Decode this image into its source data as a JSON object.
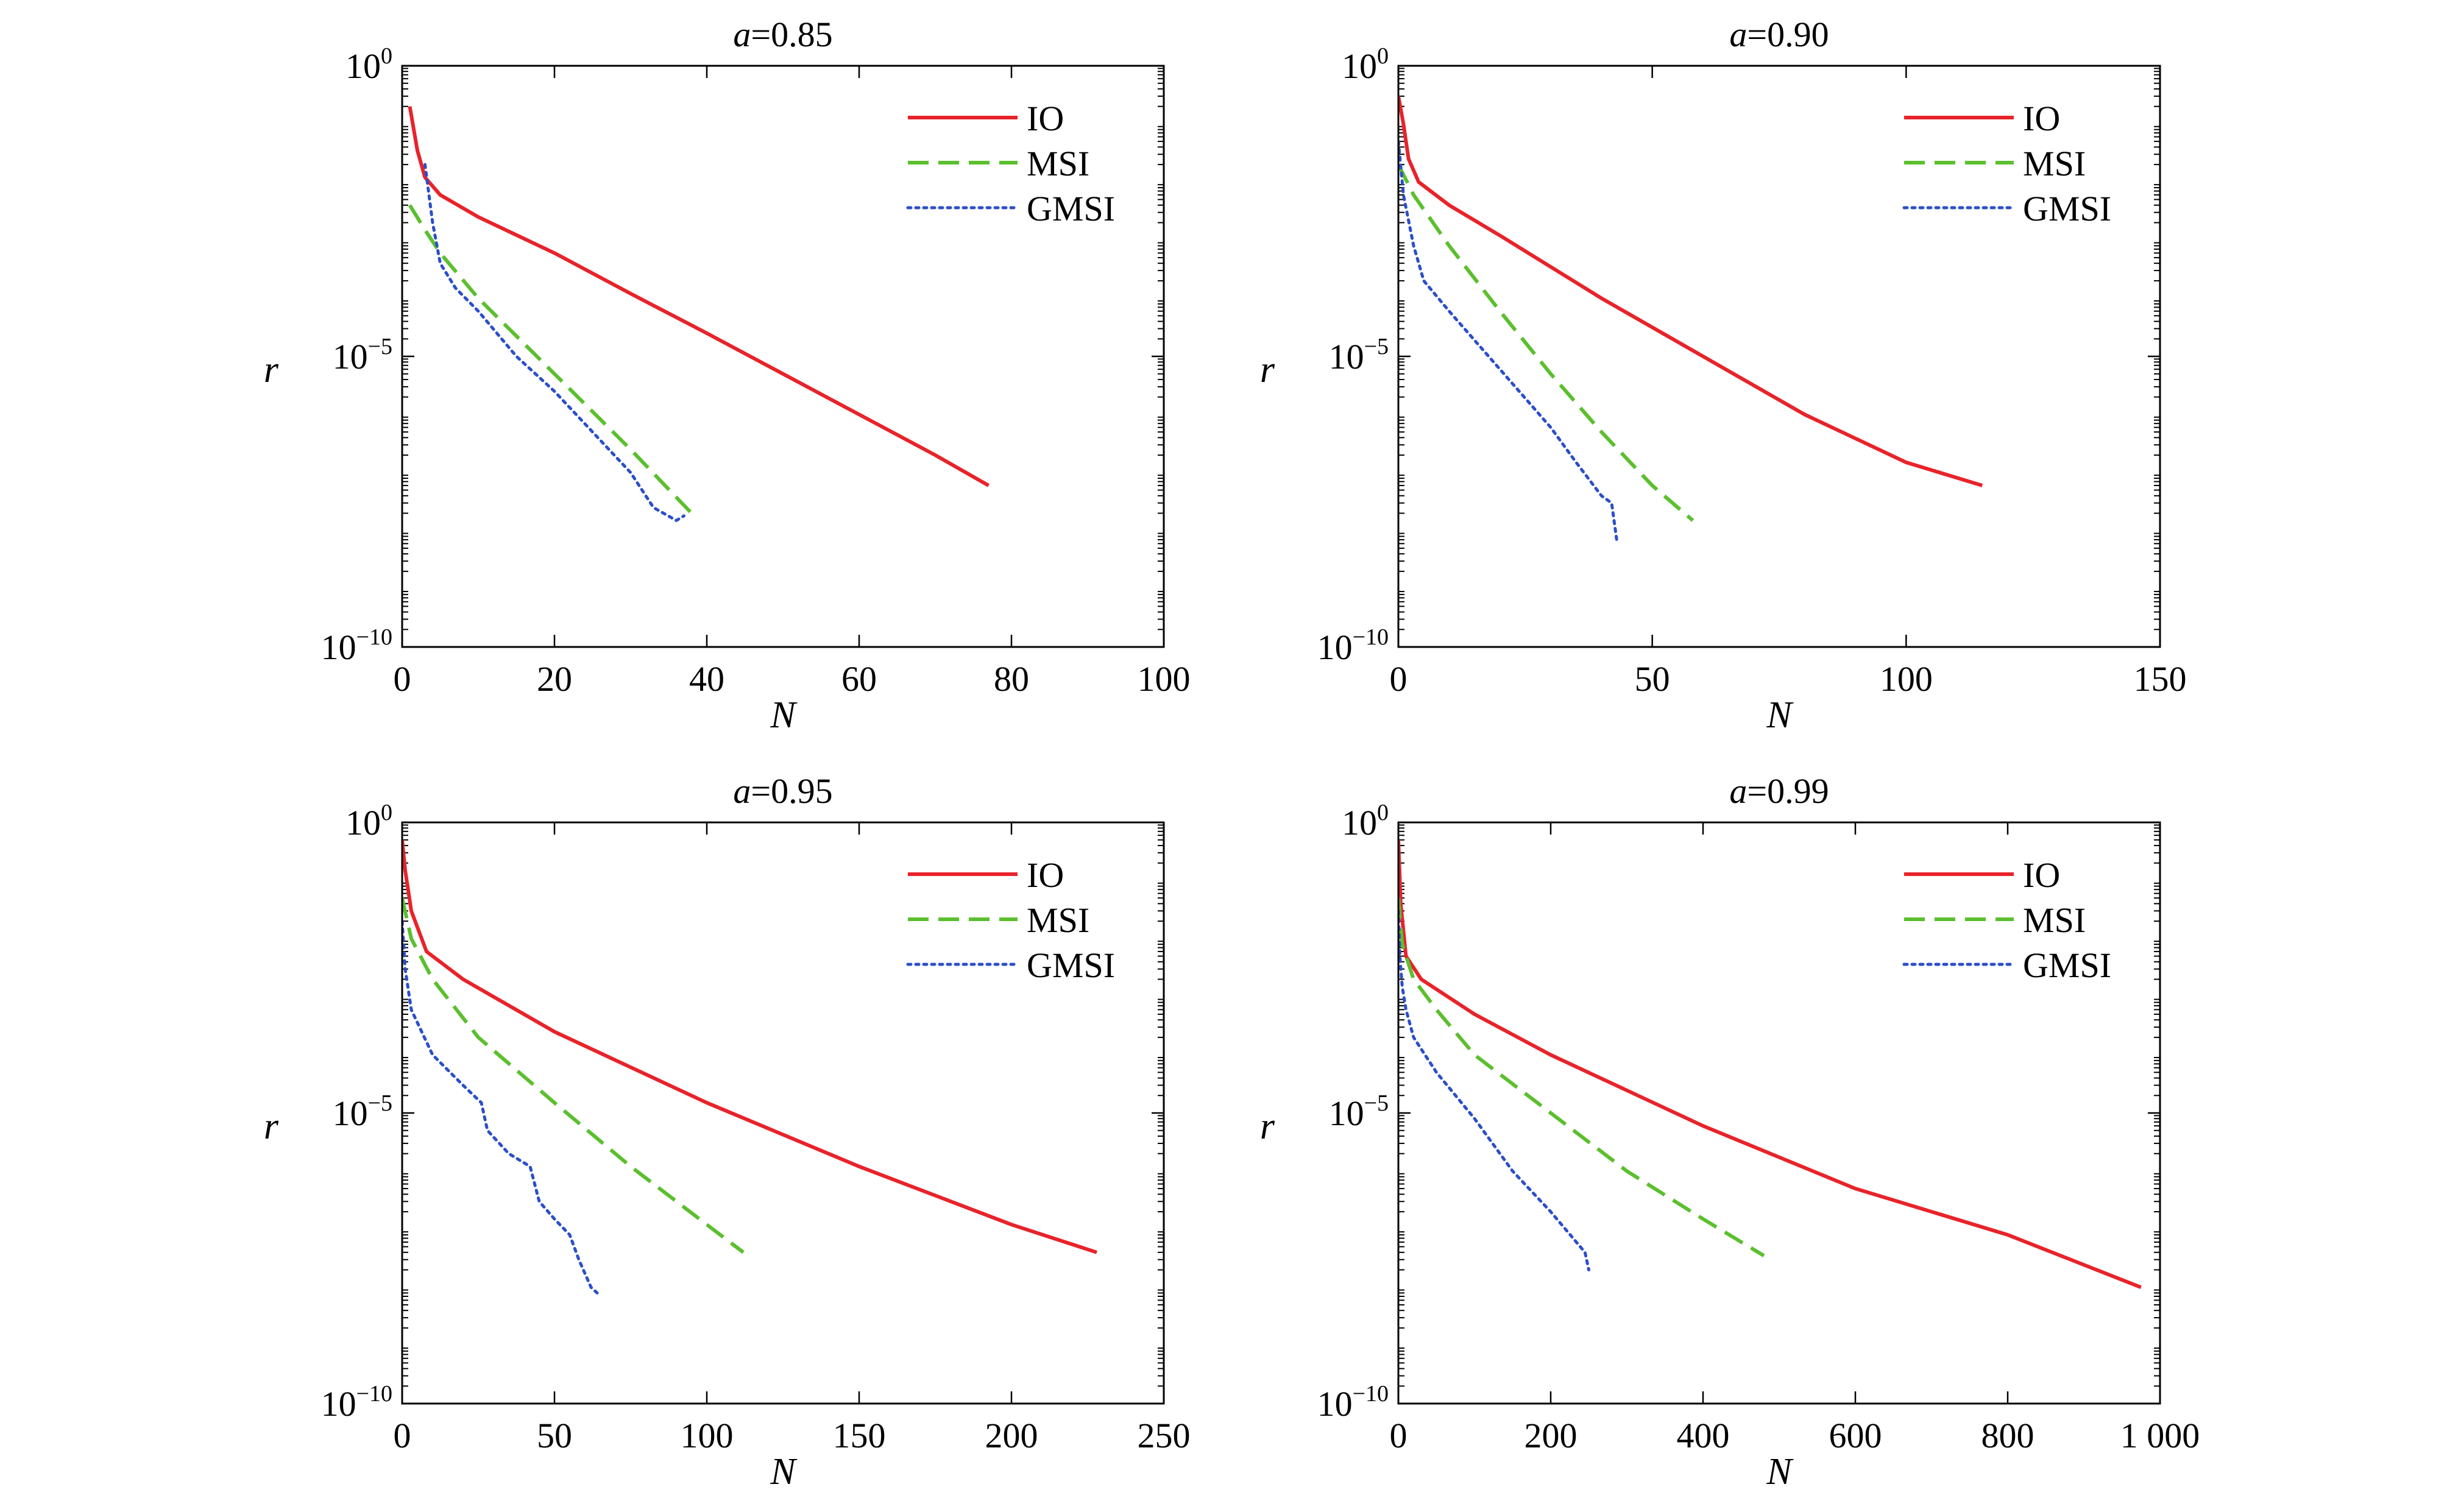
{
  "chart_data": [
    {
      "type": "line",
      "title_var": "a",
      "title_value": "=0.85",
      "xlabel": "N",
      "ylabel": "r",
      "yscale": "log",
      "xlim": [
        0,
        100
      ],
      "ylim": [
        1e-10,
        1
      ],
      "xticks": [
        0,
        20,
        40,
        60,
        80,
        100
      ],
      "xtick_labels": [
        "0",
        "20",
        "40",
        "60",
        "80",
        "100"
      ],
      "yticks": [
        {
          "base": "10",
          "exp": "0",
          "value": 1
        },
        {
          "base": "10",
          "exp": "−5",
          "value": 1e-05
        },
        {
          "base": "10",
          "exp": "−10",
          "value": 1e-10
        }
      ],
      "legend_position": "top-right",
      "series": [
        {
          "name": "IO",
          "color": "#e8232a",
          "dash": "solid",
          "points": [
            [
              1,
              0.2
            ],
            [
              2,
              0.035
            ],
            [
              3,
              0.012
            ],
            [
              5,
              0.006
            ],
            [
              10,
              0.0025
            ],
            [
              20,
              0.0006
            ],
            [
              30,
              0.00012
            ],
            [
              40,
              2.5e-05
            ],
            [
              50,
              5e-06
            ],
            [
              60,
              1e-06
            ],
            [
              70,
              2e-07
            ],
            [
              77,
              6e-08
            ]
          ]
        },
        {
          "name": "MSI",
          "color": "#5bbf2e",
          "dash": "dashed",
          "points": [
            [
              1,
              0.004
            ],
            [
              3,
              0.0015
            ],
            [
              5,
              0.0006
            ],
            [
              10,
              0.0001
            ],
            [
              20,
              5e-06
            ],
            [
              30,
              2.5e-07
            ],
            [
              38,
              2e-08
            ]
          ]
        },
        {
          "name": "GMSI",
          "color": "#2b4fc9",
          "dash": "dotted",
          "points": [
            [
              3,
              0.02
            ],
            [
              4,
              0.002
            ],
            [
              5,
              0.0004
            ],
            [
              7,
              0.00015
            ],
            [
              10,
              6e-05
            ],
            [
              15,
              1e-05
            ],
            [
              20,
              2.5e-06
            ],
            [
              25,
              5e-07
            ],
            [
              30,
              1e-07
            ],
            [
              33,
              2.5e-08
            ],
            [
              36,
              1.5e-08
            ],
            [
              37,
              1.8e-08
            ]
          ]
        }
      ]
    },
    {
      "type": "line",
      "title_var": "a",
      "title_value": "=0.90",
      "xlabel": "N",
      "ylabel": "r",
      "yscale": "log",
      "xlim": [
        0,
        150
      ],
      "ylim": [
        1e-10,
        1
      ],
      "xticks": [
        0,
        50,
        100,
        150
      ],
      "xtick_labels": [
        "0",
        "50",
        "100",
        "150"
      ],
      "yticks": [
        {
          "base": "10",
          "exp": "0",
          "value": 1
        },
        {
          "base": "10",
          "exp": "−5",
          "value": 1e-05
        },
        {
          "base": "10",
          "exp": "−10",
          "value": 1e-10
        }
      ],
      "legend_position": "top-right",
      "series": [
        {
          "name": "IO",
          "color": "#e8232a",
          "dash": "solid",
          "points": [
            [
              0,
              0.3
            ],
            [
              1,
              0.1
            ],
            [
              2,
              0.025
            ],
            [
              4,
              0.01
            ],
            [
              10,
              0.004
            ],
            [
              20,
              0.0012
            ],
            [
              40,
              0.0001
            ],
            [
              60,
              1e-05
            ],
            [
              80,
              1e-06
            ],
            [
              100,
              1.5e-07
            ],
            [
              115,
              6e-08
            ]
          ]
        },
        {
          "name": "MSI",
          "color": "#5bbf2e",
          "dash": "dashed",
          "points": [
            [
              0,
              0.02
            ],
            [
              3,
              0.006
            ],
            [
              10,
              0.0008
            ],
            [
              20,
              6e-05
            ],
            [
              30,
              5e-06
            ],
            [
              40,
              5e-07
            ],
            [
              50,
              6e-08
            ],
            [
              58,
              1.5e-08
            ]
          ]
        },
        {
          "name": "GMSI",
          "color": "#2b4fc9",
          "dash": "dotted",
          "points": [
            [
              0,
              0.05
            ],
            [
              1,
              0.006
            ],
            [
              3,
              0.0008
            ],
            [
              5,
              0.0002
            ],
            [
              10,
              6e-05
            ],
            [
              20,
              6e-06
            ],
            [
              30,
              6e-07
            ],
            [
              35,
              1.5e-07
            ],
            [
              40,
              4e-08
            ],
            [
              42,
              3e-08
            ],
            [
              43,
              7e-09
            ]
          ]
        }
      ]
    },
    {
      "type": "line",
      "title_var": "a",
      "title_value": "=0.95",
      "xlabel": "N",
      "ylabel": "r",
      "yscale": "log",
      "xlim": [
        0,
        250
      ],
      "ylim": [
        1e-10,
        1
      ],
      "xticks": [
        0,
        50,
        100,
        150,
        200,
        250
      ],
      "xtick_labels": [
        "0",
        "50",
        "100",
        "150",
        "200",
        "250"
      ],
      "yticks": [
        {
          "base": "10",
          "exp": "0",
          "value": 1
        },
        {
          "base": "10",
          "exp": "−5",
          "value": 1e-05
        },
        {
          "base": "10",
          "exp": "−10",
          "value": 1e-10
        }
      ],
      "legend_position": "top-right",
      "series": [
        {
          "name": "IO",
          "color": "#e8232a",
          "dash": "solid",
          "points": [
            [
              0,
              0.5
            ],
            [
              1,
              0.15
            ],
            [
              3,
              0.03
            ],
            [
              8,
              0.006
            ],
            [
              20,
              0.002
            ],
            [
              50,
              0.00025
            ],
            [
              100,
              1.5e-05
            ],
            [
              150,
              1.2e-06
            ],
            [
              200,
              1.2e-07
            ],
            [
              228,
              4e-08
            ]
          ]
        },
        {
          "name": "MSI",
          "color": "#5bbf2e",
          "dash": "dashed",
          "points": [
            [
              0,
              0.05
            ],
            [
              3,
              0.01
            ],
            [
              10,
              0.002
            ],
            [
              25,
              0.0002
            ],
            [
              50,
              1.5e-05
            ],
            [
              75,
              1.2e-06
            ],
            [
              100,
              1.2e-07
            ],
            [
              112,
              4e-08
            ]
          ]
        },
        {
          "name": "GMSI",
          "color": "#2b4fc9",
          "dash": "dotted",
          "points": [
            [
              0,
              0.02
            ],
            [
              1,
              0.003
            ],
            [
              3,
              0.0006
            ],
            [
              10,
              0.0001
            ],
            [
              20,
              3e-05
            ],
            [
              26,
              1.5e-05
            ],
            [
              28,
              5e-06
            ],
            [
              35,
              2e-06
            ],
            [
              42,
              1.2e-06
            ],
            [
              45,
              3e-07
            ],
            [
              50,
              1.5e-07
            ],
            [
              55,
              8e-08
            ],
            [
              58,
              3e-08
            ],
            [
              62,
              1e-08
            ],
            [
              64,
              8e-09
            ]
          ]
        }
      ]
    },
    {
      "type": "line",
      "title_var": "a",
      "title_value": "=0.99",
      "xlabel": "N",
      "ylabel": "r",
      "yscale": "log",
      "xlim": [
        0,
        1000
      ],
      "ylim": [
        1e-10,
        1
      ],
      "xticks": [
        0,
        200,
        400,
        600,
        800,
        1000
      ],
      "xtick_labels": [
        "0",
        "200",
        "400",
        "600",
        "800",
        "1 000"
      ],
      "yticks": [
        {
          "base": "10",
          "exp": "0",
          "value": 1
        },
        {
          "base": "10",
          "exp": "−5",
          "value": 1e-05
        },
        {
          "base": "10",
          "exp": "−10",
          "value": 1e-10
        }
      ],
      "legend_position": "top-right",
      "series": [
        {
          "name": "IO",
          "color": "#e8232a",
          "dash": "solid",
          "points": [
            [
              0,
              0.5
            ],
            [
              3,
              0.04
            ],
            [
              10,
              0.005
            ],
            [
              30,
              0.002
            ],
            [
              100,
              0.0005
            ],
            [
              200,
              0.0001
            ],
            [
              400,
              6e-06
            ],
            [
              600,
              5e-07
            ],
            [
              800,
              8e-08
            ],
            [
              975,
              1e-08
            ]
          ]
        },
        {
          "name": "MSI",
          "color": "#5bbf2e",
          "dash": "dashed",
          "points": [
            [
              0,
              0.05
            ],
            [
              5,
              0.008
            ],
            [
              20,
              0.002
            ],
            [
              50,
              0.0006
            ],
            [
              100,
              0.0001
            ],
            [
              200,
              1e-05
            ],
            [
              300,
              1e-06
            ],
            [
              400,
              1.5e-07
            ],
            [
              480,
              3.5e-08
            ]
          ]
        },
        {
          "name": "GMSI",
          "color": "#2b4fc9",
          "dash": "dotted",
          "points": [
            [
              0,
              0.03
            ],
            [
              2,
              0.005
            ],
            [
              5,
              0.0015
            ],
            [
              10,
              0.0006
            ],
            [
              20,
              0.0002
            ],
            [
              50,
              5e-05
            ],
            [
              100,
              8e-06
            ],
            [
              150,
              1e-06
            ],
            [
              200,
              2e-07
            ],
            [
              245,
              4e-08
            ],
            [
              250,
              2e-08
            ]
          ]
        }
      ]
    }
  ]
}
